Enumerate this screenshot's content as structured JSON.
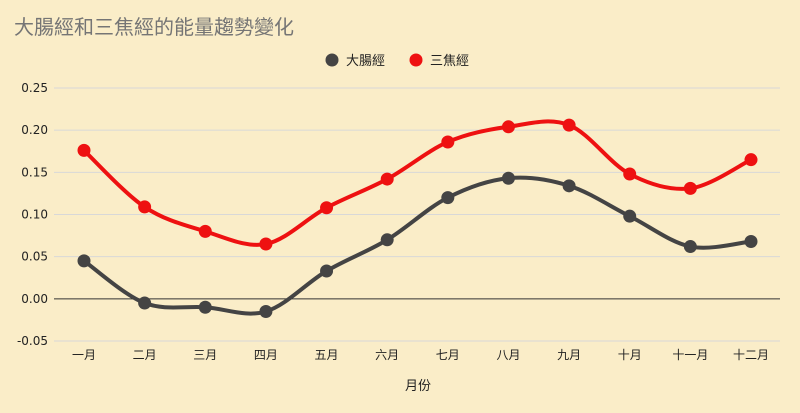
{
  "chart_data": {
    "type": "line",
    "title": "大腸經和三焦經的能量趨勢變化",
    "xlabel": "月份",
    "ylabel": "",
    "categories": [
      "一月",
      "二月",
      "三月",
      "四月",
      "五月",
      "六月",
      "七月",
      "八月",
      "九月",
      "十月",
      "十一月",
      "十二月"
    ],
    "ylim": [
      -0.05,
      0.25
    ],
    "yticks": [
      "-0.05",
      "0.00",
      "0.05",
      "0.10",
      "0.15",
      "0.20",
      "0.25"
    ],
    "grid": true,
    "legend_position": "top",
    "smooth": true,
    "series": [
      {
        "name": "大腸經",
        "color": "#444444",
        "values": [
          0.045,
          -0.005,
          -0.01,
          -0.015,
          0.033,
          0.07,
          0.12,
          0.143,
          0.134,
          0.098,
          0.062,
          0.068
        ]
      },
      {
        "name": "三焦經",
        "color": "#ee1111",
        "values": [
          0.176,
          0.109,
          0.08,
          0.065,
          0.108,
          0.142,
          0.186,
          0.204,
          0.206,
          0.148,
          0.131,
          0.165
        ]
      }
    ]
  }
}
